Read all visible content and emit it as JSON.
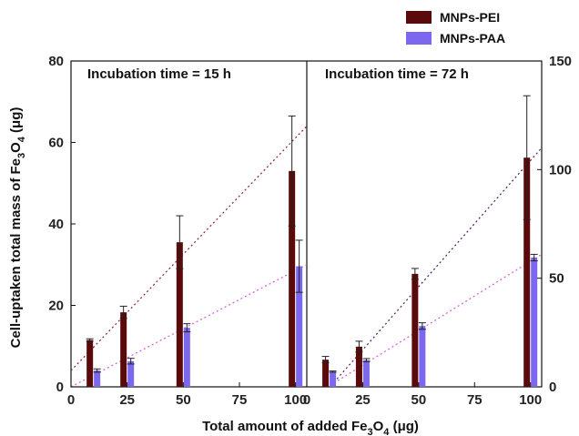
{
  "chart_data": {
    "type": "bar",
    "xlabel_parts": [
      "Total amount of added Fe",
      "3",
      "O",
      "4",
      " (μg)"
    ],
    "ylabel_parts": [
      "Cell-uptaken total mass of Fe",
      "3",
      "O",
      "4",
      " (μg)"
    ],
    "x_categories": [
      10,
      25,
      50,
      100
    ],
    "xlim": [
      0,
      105
    ],
    "x_ticks": [
      "0",
      "25",
      "50",
      "75",
      "100"
    ],
    "x_tick_values": [
      0,
      25,
      50,
      75,
      100
    ],
    "legend": {
      "position": "top-right",
      "items": [
        {
          "name": "MNPs-PEI",
          "color": "#5a0a0a"
        },
        {
          "name": "MNPs-PAA",
          "color": "#7b68ee"
        }
      ]
    },
    "panels": [
      {
        "title": "Incubation time = 15 h",
        "y_axis": "left",
        "ylim": [
          0,
          80
        ],
        "y_ticks": [
          "0",
          "20",
          "40",
          "60",
          "80"
        ],
        "y_tick_values": [
          0,
          20,
          40,
          60,
          80
        ],
        "series": [
          {
            "name": "MNPs-PEI",
            "values": [
              11.5,
              18.3,
              35.5,
              53.0
            ],
            "errors": [
              0.3,
              1.5,
              6.5,
              13.5
            ]
          },
          {
            "name": "MNPs-PAA",
            "values": [
              4.0,
              6.3,
              14.5,
              29.6
            ],
            "errors": [
              0.4,
              0.7,
              1.0,
              6.4
            ]
          }
        ],
        "trendlines": [
          {
            "series": "MNPs-PEI",
            "x": [
              0,
              105
            ],
            "y": [
              4,
              64
            ],
            "color": "#8b1a3a"
          },
          {
            "series": "MNPs-PAA",
            "x": [
              0,
              105
            ],
            "y": [
              0,
              30
            ],
            "color": "#d858d8"
          }
        ]
      },
      {
        "title": "Incubation time = 72 h",
        "y_axis": "right",
        "ylim": [
          0,
          150
        ],
        "y_ticks": [
          "0",
          "50",
          "100",
          "150"
        ],
        "y_tick_values": [
          0,
          50,
          100,
          150
        ],
        "series": [
          {
            "name": "MNPs-PEI",
            "values": [
              12.5,
              18.5,
              52.0,
              105.5
            ],
            "errors": [
              1.5,
              2.5,
              2.5,
              28.5
            ]
          },
          {
            "name": "MNPs-PAA",
            "values": [
              7.0,
              12.3,
              28.0,
              59.5
            ],
            "errors": [
              0.3,
              0.7,
              1.5,
              1.5
            ]
          }
        ],
        "trendlines": [
          {
            "series": "MNPs-PEI",
            "x": [
              0,
              105
            ],
            "y": [
              -12,
              110
            ],
            "color": "#4a1a6a"
          },
          {
            "series": "MNPs-PAA",
            "x": [
              0,
              105
            ],
            "y": [
              -6,
              61
            ],
            "color": "#d858d8"
          }
        ]
      }
    ]
  }
}
